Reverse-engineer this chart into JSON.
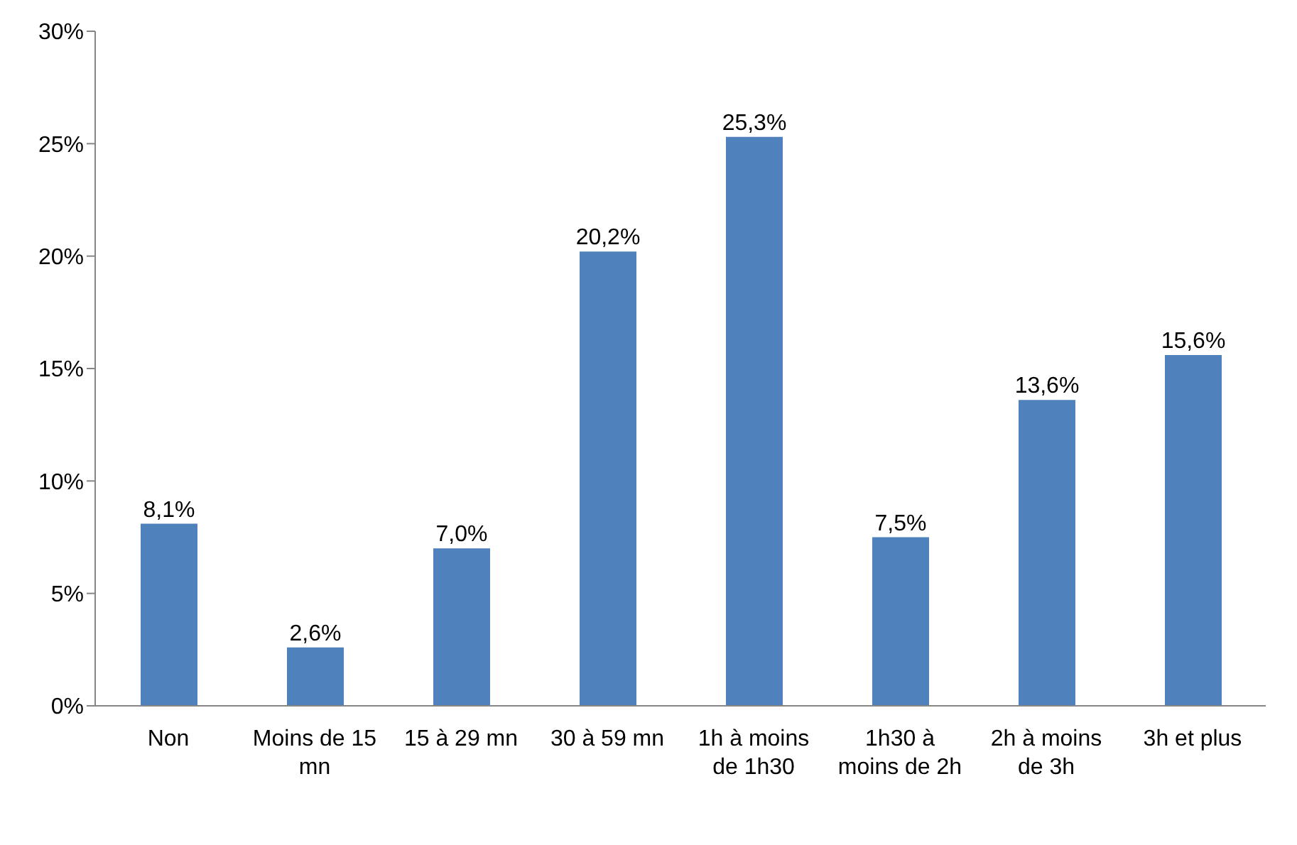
{
  "chart_data": {
    "type": "bar",
    "categories": [
      "Non",
      "Moins de 15 mn",
      "15 à 29 mn",
      "30 à 59 mn",
      "1h à moins de 1h30",
      "1h30 à moins de 2h",
      "2h à moins de 3h",
      "3h et plus"
    ],
    "values": [
      8.1,
      2.6,
      7.0,
      20.2,
      25.3,
      7.5,
      13.6,
      15.6
    ],
    "value_labels": [
      "8,1%",
      "2,6%",
      "7,0%",
      "20,2%",
      "25,3%",
      "7,5%",
      "13,6%",
      "15,6%"
    ],
    "color": "#4f81bd",
    "ylim": [
      0,
      30
    ],
    "yticks": [
      {
        "value": 0,
        "label": "0%"
      },
      {
        "value": 5,
        "label": "5%"
      },
      {
        "value": 10,
        "label": "10%"
      },
      {
        "value": 15,
        "label": "15%"
      },
      {
        "value": 20,
        "label": "20%"
      },
      {
        "value": 25,
        "label": "25%"
      },
      {
        "value": 30,
        "label": "30%"
      }
    ],
    "grid": false,
    "legend": false
  }
}
